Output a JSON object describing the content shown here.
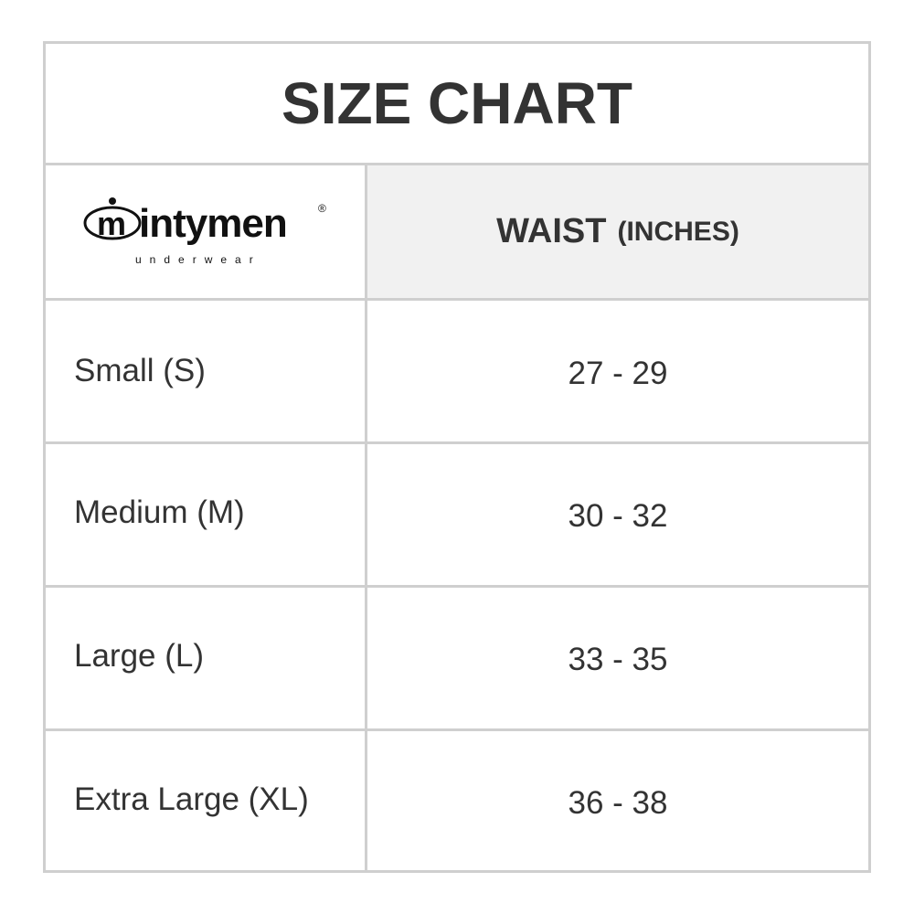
{
  "title": "SIZE CHART",
  "logo": {
    "brand": "intymen",
    "tagline": "underwear",
    "mark": "®"
  },
  "header": {
    "measure": "WAIST",
    "unit": "(INCHES)"
  },
  "rows": [
    {
      "size": "Small (S)",
      "waist": "27 - 29"
    },
    {
      "size": "Medium (M)",
      "waist": "30 - 32"
    },
    {
      "size": "Large (L)",
      "waist": "33 - 35"
    },
    {
      "size": "Extra Large (XL)",
      "waist": "36 - 38"
    }
  ]
}
